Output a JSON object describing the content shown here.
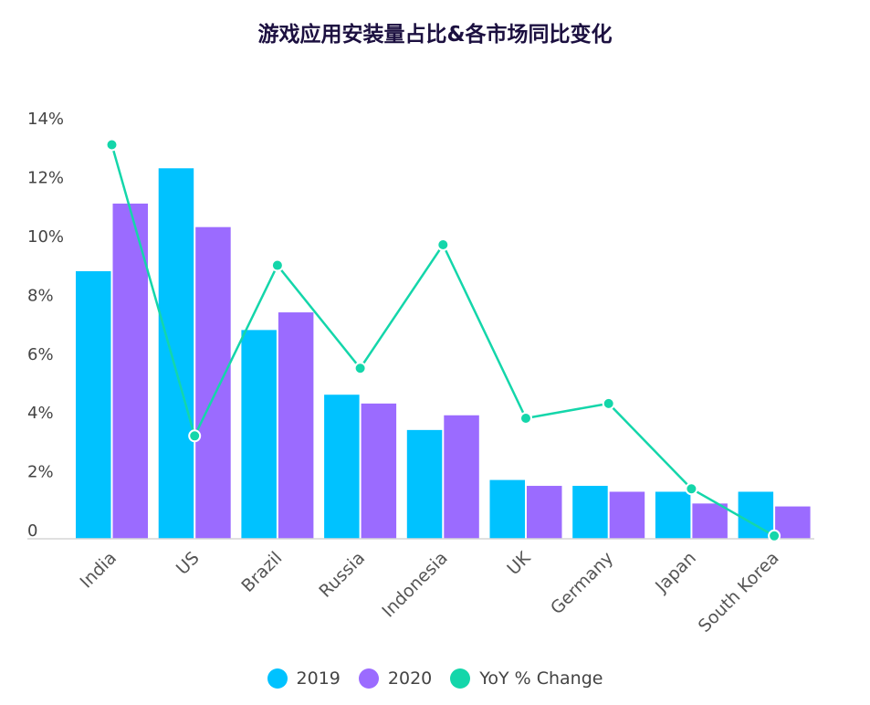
{
  "chart_data": {
    "type": "bar",
    "title": "游戏应用安装量占比&各市场同比变化",
    "categories": [
      "India",
      "US",
      "Brazil",
      "Russia",
      "Indonesia",
      "UK",
      "Germany",
      "Japan",
      "South Korea"
    ],
    "series": [
      {
        "name": "2019",
        "type": "bar",
        "color": "#00c2ff",
        "values": [
          9.1,
          12.6,
          7.1,
          4.9,
          3.7,
          2.0,
          1.8,
          1.6,
          1.6
        ]
      },
      {
        "name": "2020",
        "type": "bar",
        "color": "#9b6bff",
        "values": [
          11.4,
          10.6,
          7.7,
          4.6,
          4.2,
          1.8,
          1.6,
          1.2,
          1.1
        ]
      },
      {
        "name": "YoY % Change",
        "type": "line",
        "color": "#14d6aa",
        "values": [
          13.4,
          3.5,
          9.3,
          5.8,
          10.0,
          4.1,
          4.6,
          1.7,
          0.1
        ]
      }
    ],
    "y_ticks": [
      "0",
      "2%",
      "4%",
      "6%",
      "8%",
      "10%",
      "12%",
      "14%"
    ],
    "ylim": [
      0,
      14
    ],
    "xlabel": "",
    "ylabel": "",
    "legend_position": "bottom",
    "grid": false
  }
}
